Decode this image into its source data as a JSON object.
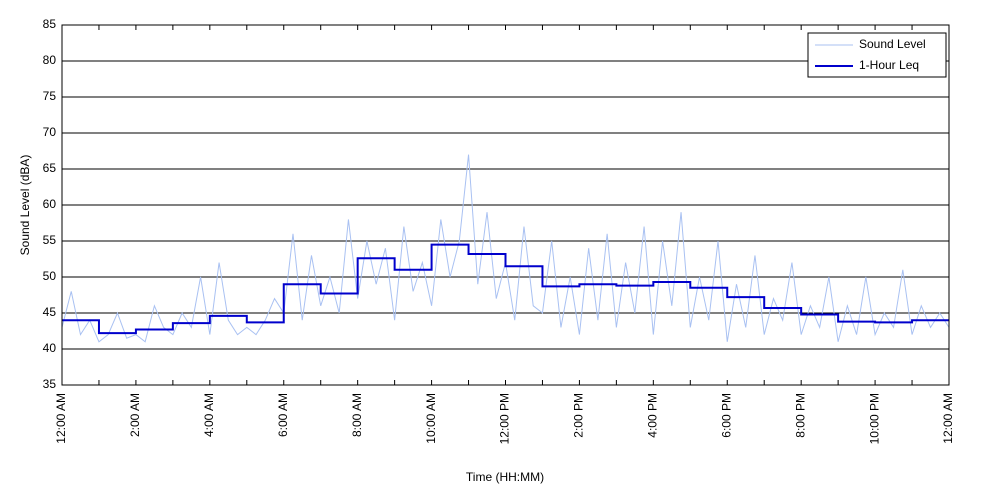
{
  "chart_data": {
    "type": "line",
    "xlabel": "Time (HH:MM)",
    "ylabel": "Sound Level (dBA)",
    "xlim": [
      0,
      24
    ],
    "ylim": [
      35,
      85
    ],
    "xticks": [
      {
        "value": 0,
        "label": "12:00 AM"
      },
      {
        "value": 2,
        "label": "2:00 AM"
      },
      {
        "value": 4,
        "label": "4:00 AM"
      },
      {
        "value": 6,
        "label": "6:00 AM"
      },
      {
        "value": 8,
        "label": "8:00 AM"
      },
      {
        "value": 10,
        "label": "10:00 AM"
      },
      {
        "value": 12,
        "label": "12:00 PM"
      },
      {
        "value": 14,
        "label": "2:00 PM"
      },
      {
        "value": 16,
        "label": "4:00 PM"
      },
      {
        "value": 18,
        "label": "6:00 PM"
      },
      {
        "value": 20,
        "label": "8:00 PM"
      },
      {
        "value": 22,
        "label": "10:00 PM"
      },
      {
        "value": 24,
        "label": "12:00 AM"
      }
    ],
    "xminorticks": [
      1,
      3,
      5,
      7,
      9,
      11,
      13,
      15,
      17,
      19,
      21,
      23
    ],
    "yticks": [
      35,
      40,
      45,
      50,
      55,
      60,
      65,
      70,
      75,
      80,
      85
    ],
    "grid": true,
    "legend": "upper right",
    "series": [
      {
        "name": "Sound Level",
        "color": "#a9c1f2",
        "width": 1,
        "x": [
          0,
          0.25,
          0.5,
          0.75,
          1,
          1.25,
          1.5,
          1.75,
          2,
          2.25,
          2.5,
          2.75,
          3,
          3.25,
          3.5,
          3.75,
          4,
          4.25,
          4.5,
          4.75,
          5,
          5.25,
          5.5,
          5.75,
          6,
          6.25,
          6.5,
          6.75,
          7,
          7.25,
          7.5,
          7.75,
          8,
          8.25,
          8.5,
          8.75,
          9,
          9.25,
          9.5,
          9.75,
          10,
          10.25,
          10.5,
          10.75,
          11,
          11.25,
          11.5,
          11.75,
          12,
          12.25,
          12.5,
          12.75,
          13,
          13.25,
          13.5,
          13.75,
          14,
          14.25,
          14.5,
          14.75,
          15,
          15.25,
          15.5,
          15.75,
          16,
          16.25,
          16.5,
          16.75,
          17,
          17.25,
          17.5,
          17.75,
          18,
          18.25,
          18.5,
          18.75,
          19,
          19.25,
          19.5,
          19.75,
          20,
          20.25,
          20.5,
          20.75,
          21,
          21.25,
          21.5,
          21.75,
          22,
          22.25,
          22.5,
          22.75,
          23,
          23.25,
          23.5,
          23.75,
          24
        ],
        "values": [
          43,
          48,
          42,
          44,
          41,
          42,
          45,
          41.5,
          42,
          41,
          46,
          43,
          42,
          45,
          43,
          50,
          42,
          52,
          44,
          42,
          43,
          42,
          44,
          47,
          45,
          56,
          44,
          53,
          46,
          50,
          45,
          58,
          47,
          55,
          49,
          54,
          44,
          57,
          48,
          52,
          46,
          58,
          50,
          55,
          67,
          49,
          59,
          47,
          52,
          44,
          57,
          46,
          45,
          55,
          43,
          50,
          42,
          54,
          44,
          56,
          43,
          52,
          45,
          57,
          42,
          55,
          46,
          59,
          43,
          50,
          44,
          55,
          41,
          49,
          43,
          53,
          42,
          47,
          44,
          52,
          42,
          46,
          43,
          50,
          41,
          46,
          42,
          50,
          42,
          45,
          43,
          51,
          42,
          46,
          43,
          45,
          43
        ]
      },
      {
        "name": "1-Hour Leq",
        "color": "#0000cc",
        "width": 2,
        "drawstyle": "steps-post",
        "x": [
          0,
          1,
          2,
          3,
          4,
          5,
          6,
          7,
          8,
          9,
          10,
          11,
          12,
          13,
          14,
          15,
          16,
          17,
          18,
          19,
          20,
          21,
          22,
          23
        ],
        "values": [
          44,
          42.2,
          42.7,
          43.6,
          44.6,
          43.7,
          49,
          47.7,
          52.6,
          51,
          54.5,
          53.2,
          51.5,
          48.7,
          49,
          48.8,
          49.3,
          48.5,
          47.2,
          45.7,
          44.8,
          43.8,
          43.7,
          44
        ]
      }
    ]
  }
}
